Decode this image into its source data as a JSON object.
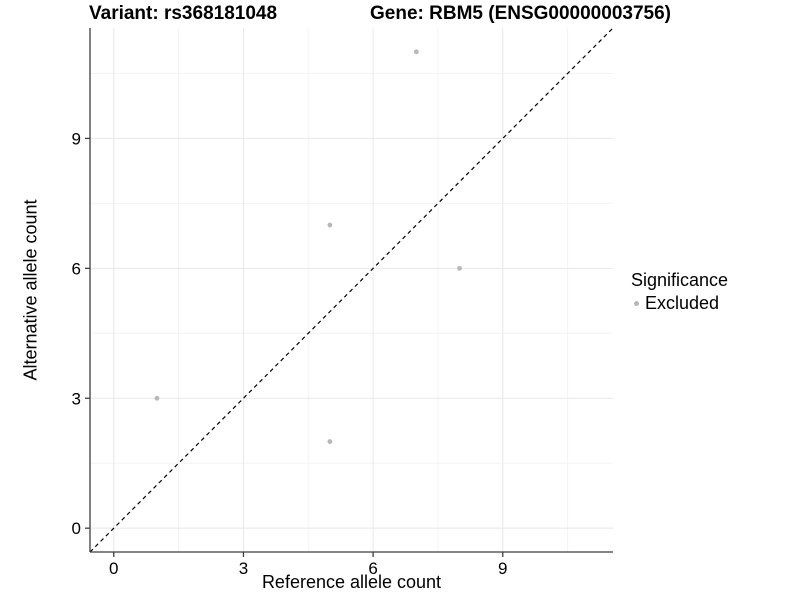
{
  "chart_data": {
    "type": "scatter",
    "title_left": "Variant: rs368181048",
    "title_right": "Gene: RBM5 (ENSG00000003756)",
    "xlabel": "Reference allele count",
    "ylabel": "Alternative allele count",
    "xlim": [
      -0.55,
      11.55
    ],
    "ylim": [
      -0.55,
      11.55
    ],
    "x_ticks": [
      0,
      3,
      6,
      9
    ],
    "y_ticks": [
      0,
      3,
      6,
      9
    ],
    "x_minor_ticks": [
      1.5,
      4.5,
      7.5,
      10.5
    ],
    "y_minor_ticks": [
      1.5,
      4.5,
      7.5,
      10.5
    ],
    "grid": true,
    "legend_position": "right",
    "series": [
      {
        "name": "Excluded",
        "points": [
          [
            1,
            3
          ],
          [
            5,
            7
          ],
          [
            5,
            2
          ],
          [
            7,
            11
          ],
          [
            8,
            6
          ]
        ]
      }
    ],
    "reference_line": {
      "slope": 1,
      "intercept": 0,
      "style": "dashed"
    },
    "legend": {
      "title": "Significance",
      "items": [
        {
          "label": "Excluded"
        }
      ]
    },
    "style": {
      "point_color": "#b8b8b8",
      "legend_dot_color": "#b8b8b8",
      "grid_major_color": "#e8e8e8",
      "grid_minor_color": "#f3f3f3",
      "axis_color": "#3f3f3f",
      "reference_line_color": "#000000",
      "text_color": "#000000",
      "background_color": "#ffffff"
    }
  }
}
